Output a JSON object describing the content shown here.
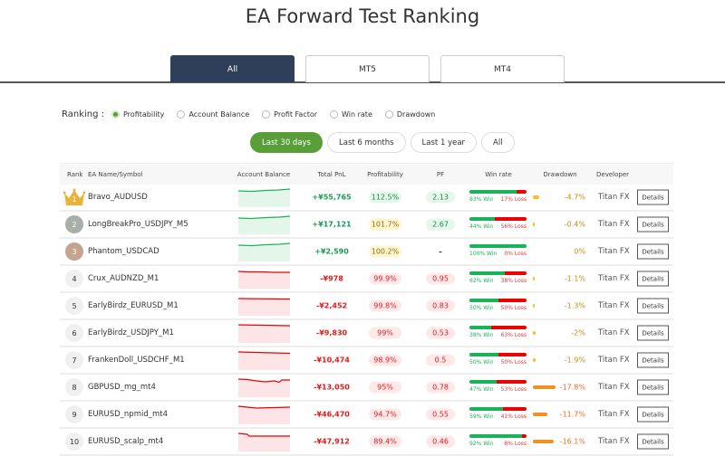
{
  "title": "EA Forward Test Ranking",
  "tabs": [
    {
      "label": "All",
      "active": true
    },
    {
      "label": "MT5",
      "active": false
    },
    {
      "label": "MT4",
      "active": false
    }
  ],
  "ranking": {
    "label": "Ranking :",
    "options": [
      {
        "label": "Profitability",
        "selected": true
      },
      {
        "label": "Account Balance",
        "selected": false
      },
      {
        "label": "Profit Factor",
        "selected": false
      },
      {
        "label": "Win rate",
        "selected": false
      },
      {
        "label": "Drawdown",
        "selected": false
      }
    ]
  },
  "periods": [
    {
      "label": "Last 30 days",
      "active": true
    },
    {
      "label": "Last 6 months",
      "active": false
    },
    {
      "label": "Last 1 year",
      "active": false
    },
    {
      "label": "All",
      "active": false
    }
  ],
  "colors": {
    "positive": "#1a9a55",
    "negative": "#e01b1b",
    "accent": "#5a9e3a",
    "tab_active": "#2f3f5a"
  },
  "columns": [
    "Rank",
    "EA Name/Symbol",
    "Account Balance",
    "Total PnL",
    "Profitability",
    "PF",
    "Win rate",
    "Drawdown",
    "Developer"
  ],
  "rows": [
    {
      "rank": "1",
      "name": "Bravo_AUDUSD",
      "trend": "positive",
      "pnl": "+¥55,765",
      "profit": "112.5%",
      "pcls": "pg",
      "pf": "2.13",
      "pfcls": "pg",
      "win": 83,
      "win_label": "83% Win",
      "loss_label": "17% Loss",
      "dd": -4.7,
      "dd_label": "-4.7%",
      "developer": "Titan FX",
      "details": "Details"
    },
    {
      "rank": "2",
      "name": "LongBreakPro_USDJPY_M5",
      "trend": "positive",
      "pnl": "+¥17,121",
      "profit": "101.7%",
      "pcls": "py",
      "pf": "2.67",
      "pfcls": "pg",
      "win": 44,
      "win_label": "44% Win",
      "loss_label": "56% Loss",
      "dd": -0.4,
      "dd_label": "-0.4%",
      "developer": "Titan FX",
      "details": "Details"
    },
    {
      "rank": "3",
      "name": "Phantom_USDCAD",
      "trend": "positive",
      "pnl": "+¥2,590",
      "profit": "100.2%",
      "pcls": "py",
      "pf": "–",
      "pfcls": "",
      "win": 100,
      "win_label": "100% Win",
      "loss_label": "0% Loss",
      "dd": 0,
      "dd_label": "0%",
      "developer": "Titan FX",
      "details": "Details"
    },
    {
      "rank": "4",
      "name": "Crux_AUDNZD_M1",
      "trend": "negative",
      "pnl": "-¥978",
      "profit": "99.9%",
      "pcls": "pr",
      "pf": "0.95",
      "pfcls": "pr",
      "win": 62,
      "win_label": "62% Win",
      "loss_label": "38% Loss",
      "dd": -1.1,
      "dd_label": "-1.1%",
      "developer": "Titan FX",
      "details": "Details"
    },
    {
      "rank": "5",
      "name": "EarlyBirdz_EURUSD_M1",
      "trend": "negative",
      "pnl": "-¥2,452",
      "profit": "99.8%",
      "pcls": "pr",
      "pf": "0.83",
      "pfcls": "pr",
      "win": 50,
      "win_label": "50% Win",
      "loss_label": "50% Loss",
      "dd": -1.3,
      "dd_label": "-1.3%",
      "developer": "Titan FX",
      "details": "Details"
    },
    {
      "rank": "6",
      "name": "EarlyBirdz_USDJPY_M1",
      "trend": "negative",
      "pnl": "-¥9,830",
      "profit": "99%",
      "pcls": "pr",
      "pf": "0.53",
      "pfcls": "pr",
      "win": 38,
      "win_label": "38% Win",
      "loss_label": "63% Loss",
      "dd": -2,
      "dd_label": "-2%",
      "developer": "Titan FX",
      "details": "Details"
    },
    {
      "rank": "7",
      "name": "FrankenDoll_USDCHF_M1",
      "trend": "negative",
      "pnl": "-¥10,474",
      "profit": "98.9%",
      "pcls": "pr",
      "pf": "0.5",
      "pfcls": "pr",
      "win": 50,
      "win_label": "50% Win",
      "loss_label": "50% Loss",
      "dd": -1.9,
      "dd_label": "-1.9%",
      "developer": "Titan FX",
      "details": "Details"
    },
    {
      "rank": "8",
      "name": "GBPUSD_mg_mt4",
      "trend": "negative",
      "pnl": "-¥13,050",
      "profit": "95%",
      "pcls": "pr",
      "pf": "0.78",
      "pfcls": "pr",
      "win": 47,
      "win_label": "47% Win",
      "loss_label": "53% Loss",
      "dd": -17.8,
      "dd_label": "-17.8%",
      "developer": "Titan FX",
      "details": "Details"
    },
    {
      "rank": "9",
      "name": "EURUSD_npmid_mt4",
      "trend": "negative",
      "pnl": "-¥46,470",
      "profit": "94.7%",
      "pcls": "pr",
      "pf": "0.55",
      "pfcls": "pr",
      "win": 59,
      "win_label": "59% Win",
      "loss_label": "41% Loss",
      "dd": -11.7,
      "dd_label": "-11.7%",
      "developer": "Titan FX",
      "details": "Details"
    },
    {
      "rank": "10",
      "name": "EURUSD_scalp_mt4",
      "trend": "negative",
      "pnl": "-¥47,912",
      "profit": "89.4%",
      "pcls": "pr",
      "pf": "0.46",
      "pfcls": "pr",
      "win": 92,
      "win_label": "92% Win",
      "loss_label": "8% Loss",
      "dd": -16.1,
      "dd_label": "-16.1%",
      "developer": "Titan FX",
      "details": "Details"
    }
  ]
}
